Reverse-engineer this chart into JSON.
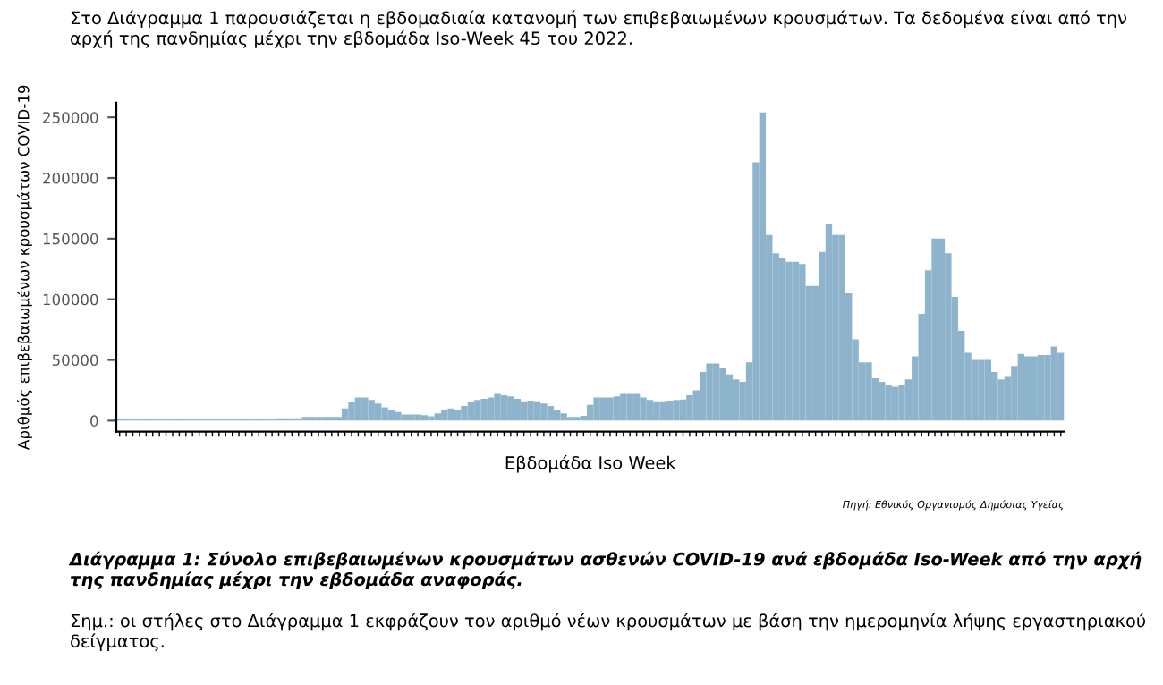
{
  "chart_data": {
    "type": "bar",
    "xlabel": "Εβδομάδα Iso Week",
    "ylabel": "Αριθμός επιβεβαιωμένων κρουσμάτων COVID-19",
    "categories": [
      null,
      null,
      null,
      null,
      null,
      null,
      null,
      null,
      null,
      null,
      null,
      null,
      null,
      null,
      null,
      null,
      null,
      null,
      null,
      null,
      null,
      null,
      null,
      null,
      null,
      null,
      null,
      null,
      null,
      null,
      null,
      null,
      null,
      null,
      null,
      null,
      null,
      null,
      null,
      null,
      null,
      null,
      null,
      null,
      null,
      null,
      null,
      null,
      null,
      null,
      null,
      null,
      null,
      null,
      null,
      null,
      null,
      null,
      null,
      null,
      null,
      null,
      null,
      null,
      null,
      null,
      null,
      null,
      null,
      null,
      null,
      null,
      null,
      null,
      null,
      null,
      null,
      null,
      null,
      null,
      null,
      null,
      null,
      null,
      null,
      null,
      null,
      null,
      null,
      null,
      null,
      null,
      null,
      null,
      null,
      null,
      null,
      null,
      null,
      null,
      null,
      null,
      null,
      null,
      null,
      null,
      null,
      null,
      null,
      null,
      null,
      null,
      null,
      null,
      null,
      null,
      null,
      null,
      null,
      null,
      null,
      null,
      null,
      null,
      null,
      null,
      null,
      null,
      null,
      null,
      null,
      null,
      null,
      null,
      null,
      null,
      null,
      null,
      null,
      null,
      null,
      null,
      null
    ],
    "values": [
      1000,
      1000,
      1000,
      1000,
      1000,
      1000,
      1000,
      1000,
      1000,
      1000,
      1000,
      1000,
      1000,
      1000,
      1000,
      1000,
      1000,
      1000,
      1000,
      1000,
      1000,
      1000,
      1000,
      1000,
      2000,
      2000,
      2000,
      2000,
      3000,
      3000,
      3000,
      3000,
      3000,
      3000,
      10000,
      15000,
      19000,
      19000,
      17000,
      14000,
      11000,
      9000,
      7000,
      5000,
      5000,
      5000,
      4500,
      3500,
      6000,
      9000,
      10000,
      9000,
      12000,
      15000,
      17000,
      18000,
      19000,
      22000,
      21000,
      20000,
      18000,
      16000,
      16500,
      16000,
      14000,
      12000,
      9000,
      6000,
      3000,
      3000,
      4000,
      13000,
      19000,
      19000,
      19000,
      20000,
      22000,
      22000,
      22000,
      19000,
      17000,
      16000,
      16000,
      16500,
      17000,
      17500,
      21000,
      25000,
      40000,
      47000,
      47000,
      43000,
      38000,
      34000,
      32000,
      48000,
      213000,
      254000,
      153000,
      138000,
      134000,
      131000,
      131000,
      129000,
      111000,
      111000,
      139000,
      162000,
      153000,
      153000,
      105000,
      67000,
      48000,
      48000,
      35000,
      32000,
      29000,
      28000,
      29000,
      34000,
      53000,
      88000,
      124000,
      150000,
      150000,
      138000,
      102000,
      74000,
      56000,
      50000,
      50000,
      50000,
      40000,
      34000,
      36000,
      45000,
      55000,
      53000,
      53000,
      54000,
      54000,
      61000,
      56000
    ],
    "color": "#8db4cc",
    "ylim": [
      -9000,
      262000
    ],
    "yticks": [
      0,
      50000,
      100000,
      150000,
      200000,
      250000
    ],
    "grid": false,
    "annotations": [
      "Στο Διάγραμμα 1 παρουσιάζεται η εβδομαδιαία κατανομή των επιβεβαιωμένων κρουσμάτων. Τα δεδομένα είναι από την αρχή της πανδημίας μέχρι την εβδομάδα Iso-Week 45 του 2022.",
      "Πηγή: Εθνικός Οργανισμός Δημόσιας Υγείας",
      "Διάγραμμα 1: Σύνολο επιβεβαιωμένων κρουσμάτων ασθενών COVID-19 ανά εβδομάδα Iso-Week από την αρχή της πανδημίας μέχρι την εβδομάδα αναφοράς.",
      "Σημ.: οι στήλες στο Διάγραμμα 1 εκφράζουν τον αριθμό νέων κρουσμάτων με βάση την ημερομηνία λήψης εργαστηριακού δείγματος."
    ]
  }
}
